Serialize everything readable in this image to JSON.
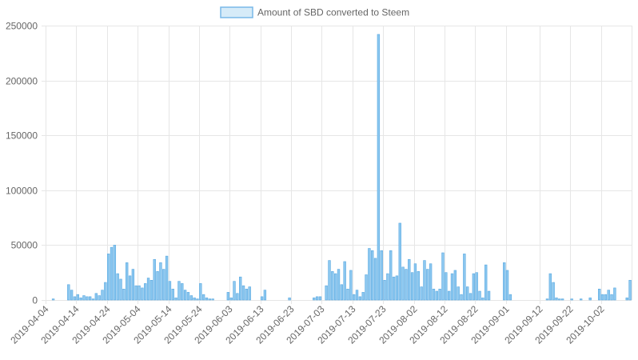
{
  "chart_data": {
    "type": "bar",
    "legend": {
      "label": "Amount of SBD converted to Steem",
      "position": "top"
    },
    "colors": {
      "bar_fill": "#8cc8f0",
      "bar_stroke": "#5aa8e0",
      "legend_fill": "#d6ebf8",
      "legend_stroke": "#78b8e8",
      "grid": "#e6e6e6",
      "text": "#666666"
    },
    "ylim": [
      0,
      250000
    ],
    "y_ticks": [
      "250000",
      "200000",
      "150000",
      "100000",
      "50000",
      "0"
    ],
    "x_tick_labels": [
      "2019-04-04",
      "2019-04-14",
      "2019-04-24",
      "2019-05-04",
      "2019-05-14",
      "2019-05-24",
      "2019-06-03",
      "2019-06-13",
      "2019-06-23",
      "2019-07-03",
      "2019-07-13",
      "2019-07-23",
      "2019-08-02",
      "2019-08-12",
      "2019-08-22",
      "2019-09-01",
      "2019-09-12",
      "2019-09-22",
      "2019-10-02"
    ],
    "start_date": "2019-04-04",
    "values": [
      0,
      0,
      1000,
      0,
      0,
      0,
      0,
      14000,
      9000,
      3000,
      5000,
      2000,
      4000,
      3000,
      3000,
      1000,
      6000,
      4000,
      9000,
      16000,
      42000,
      48000,
      50000,
      24000,
      19000,
      10000,
      34000,
      22000,
      28000,
      13000,
      13000,
      11000,
      15000,
      20000,
      18000,
      37000,
      26000,
      34000,
      28000,
      40000,
      17000,
      10000,
      2000,
      17000,
      15000,
      9000,
      7000,
      4000,
      2000,
      1000,
      15000,
      5000,
      2000,
      1000,
      1000,
      0,
      0,
      0,
      0,
      7000,
      2000,
      17000,
      6000,
      21000,
      13000,
      10000,
      12000,
      0,
      0,
      0,
      3000,
      9000,
      0,
      0,
      0,
      0,
      0,
      0,
      0,
      2000,
      0,
      0,
      0,
      0,
      0,
      0,
      0,
      2000,
      3000,
      3000,
      0,
      13000,
      36000,
      26000,
      24000,
      28000,
      14000,
      35000,
      10000,
      27000,
      5000,
      9000,
      3000,
      7000,
      23000,
      47000,
      45000,
      38000,
      242000,
      45000,
      18000,
      24000,
      45000,
      21000,
      22000,
      70000,
      30000,
      28000,
      37000,
      25000,
      33000,
      26000,
      12000,
      36000,
      28000,
      33000,
      10000,
      8000,
      10000,
      43000,
      25000,
      8000,
      24000,
      27000,
      12000,
      5000,
      42000,
      12000,
      6000,
      24000,
      25000,
      8000,
      2000,
      32000,
      8000,
      0,
      0,
      0,
      0,
      34000,
      27000,
      5000,
      0,
      0,
      0,
      0,
      0,
      0,
      0,
      0,
      0,
      0,
      0,
      1000,
      24000,
      16000,
      2000,
      1000,
      1000,
      0,
      0,
      1000,
      0,
      0,
      1000,
      0,
      0,
      2000,
      0,
      0,
      10000,
      5000,
      5000,
      9000,
      5000,
      11000,
      0,
      0,
      0,
      2000,
      18000
    ]
  }
}
